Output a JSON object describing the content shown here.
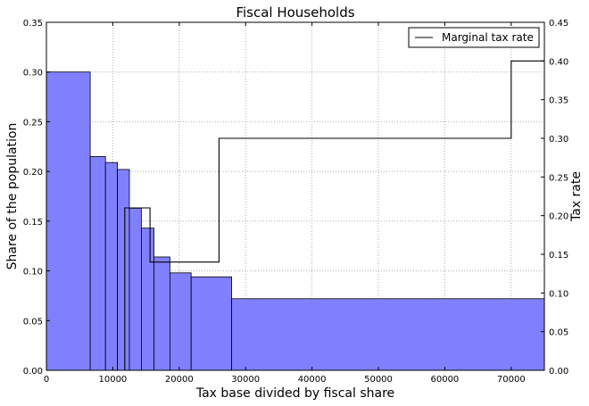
{
  "chart_data": {
    "type": "bar",
    "title": "Fiscal Households",
    "xlabel": "Tax base divided by fiscal share",
    "ylabel": "Share of the population",
    "y2label": "Tax rate",
    "xlim": [
      0,
      75000
    ],
    "ylim": [
      0,
      0.35
    ],
    "y2lim": [
      0,
      0.45
    ],
    "grid": true,
    "legend_position": "top-right",
    "colors": {
      "bars": "#8080ff",
      "bar_edge": "#000000",
      "line": "#000000",
      "grid": "#b0b0b0"
    },
    "x_ticks": [
      {
        "value": 0,
        "label": "0"
      },
      {
        "value": 10000,
        "label": "10000"
      },
      {
        "value": 20000,
        "label": "20000"
      },
      {
        "value": 30000,
        "label": "30000"
      },
      {
        "value": 40000,
        "label": "40000"
      },
      {
        "value": 50000,
        "label": "50000"
      },
      {
        "value": 60000,
        "label": "60000"
      },
      {
        "value": 70000,
        "label": "70000"
      }
    ],
    "y_ticks": [
      {
        "value": 0,
        "label": "0.00"
      },
      {
        "value": 0.05,
        "label": "0.05"
      },
      {
        "value": 0.1,
        "label": "0.10"
      },
      {
        "value": 0.15,
        "label": "0.15"
      },
      {
        "value": 0.2,
        "label": "0.20"
      },
      {
        "value": 0.25,
        "label": "0.25"
      },
      {
        "value": 0.3,
        "label": "0.30"
      },
      {
        "value": 0.35,
        "label": "0.35"
      }
    ],
    "y2_ticks": [
      {
        "value": 0,
        "label": "0.00"
      },
      {
        "value": 0.05,
        "label": "0.05"
      },
      {
        "value": 0.1,
        "label": "0.10"
      },
      {
        "value": 0.15,
        "label": "0.15"
      },
      {
        "value": 0.2,
        "label": "0.20"
      },
      {
        "value": 0.25,
        "label": "0.25"
      },
      {
        "value": 0.3,
        "label": "0.30"
      },
      {
        "value": 0.35,
        "label": "0.35"
      },
      {
        "value": 0.4,
        "label": "0.40"
      },
      {
        "value": 0.45,
        "label": "0.45"
      }
    ],
    "bars": [
      {
        "x0": 0,
        "x1": 6600,
        "value": 0.3
      },
      {
        "x0": 6600,
        "x1": 8900,
        "value": 0.215
      },
      {
        "x0": 8900,
        "x1": 10700,
        "value": 0.209
      },
      {
        "x0": 10700,
        "x1": 12500,
        "value": 0.202
      },
      {
        "x0": 12500,
        "x1": 14300,
        "value": 0.163
      },
      {
        "x0": 14300,
        "x1": 16200,
        "value": 0.143
      },
      {
        "x0": 16200,
        "x1": 18600,
        "value": 0.114
      },
      {
        "x0": 18600,
        "x1": 21800,
        "value": 0.098
      },
      {
        "x0": 21800,
        "x1": 27900,
        "value": 0.094
      },
      {
        "x0": 27900,
        "x1": 75000,
        "value": 0.072
      }
    ],
    "series": [
      {
        "name": "Marginal tax rate",
        "axis": "right",
        "step": true,
        "x": [
          0,
          11800,
          11800,
          15600,
          15600,
          26000,
          26000,
          70000,
          70000,
          75000
        ],
        "y": [
          0.0,
          0.0,
          0.21,
          0.21,
          0.14,
          0.14,
          0.3,
          0.3,
          0.4,
          0.4
        ]
      }
    ]
  }
}
